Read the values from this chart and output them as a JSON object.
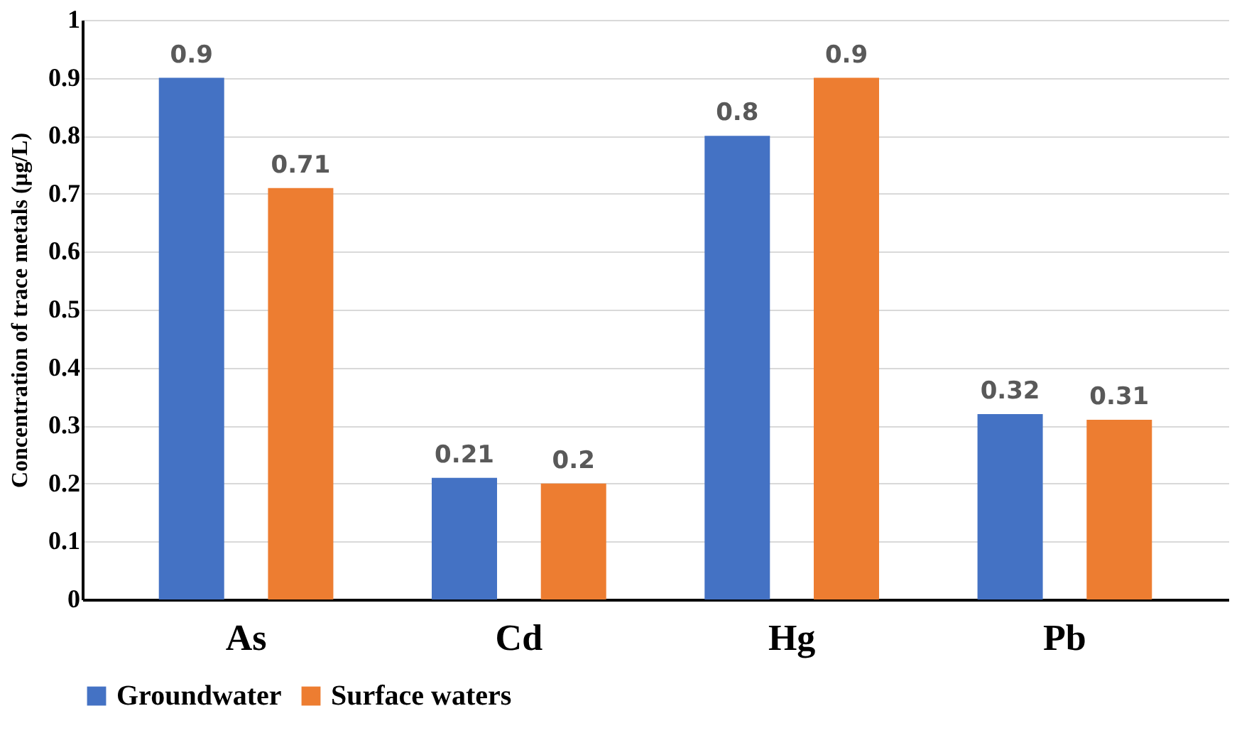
{
  "chart_data": {
    "type": "bar",
    "ylabel": "Concentration of trace metals (µg/L)",
    "categories": [
      "As",
      "Cd",
      "Hg",
      "Pb"
    ],
    "series": [
      {
        "name": "Groundwater",
        "color": "#4472c4",
        "values": [
          0.9,
          0.21,
          0.8,
          0.32
        ]
      },
      {
        "name": "Surface waters",
        "color": "#ed7d31",
        "values": [
          0.71,
          0.2,
          0.9,
          0.31
        ]
      }
    ],
    "ylim": [
      0,
      1
    ],
    "yticks": [
      0,
      0.1,
      0.2,
      0.3,
      0.4,
      0.5,
      0.6,
      0.7,
      0.8,
      0.9,
      1
    ],
    "grid": "y",
    "legend": "bottom",
    "data_labels": true
  }
}
